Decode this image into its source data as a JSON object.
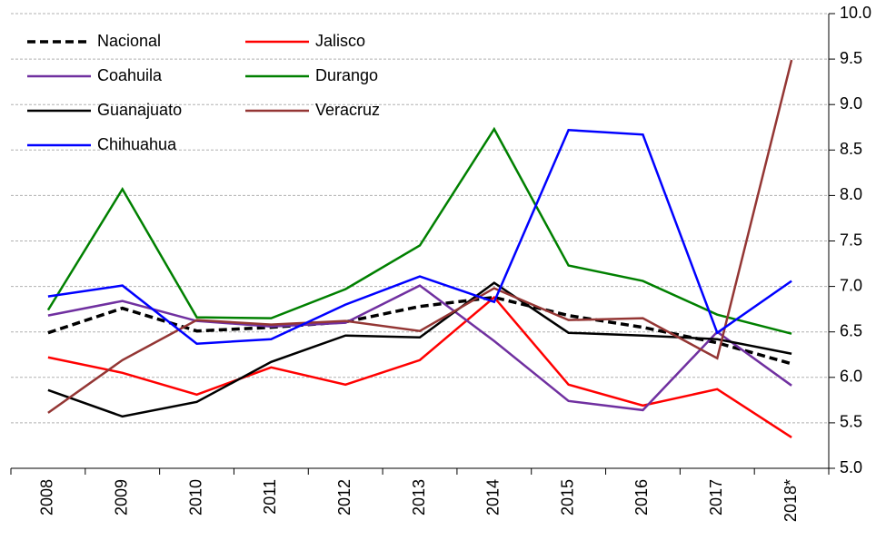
{
  "chart_data": {
    "type": "line",
    "categories": [
      "2008",
      "2009",
      "2010",
      "2011",
      "2012",
      "2013",
      "2014",
      "2015",
      "2016",
      "2017",
      "2018*"
    ],
    "series": [
      {
        "name": "Nacional",
        "color": "#000000",
        "line_style": "dashed",
        "values": [
          6.49,
          6.76,
          6.51,
          6.55,
          6.61,
          6.78,
          6.88,
          6.68,
          6.55,
          6.38,
          6.15
        ]
      },
      {
        "name": "Jalisco",
        "color": "#ff0000",
        "values": [
          6.22,
          6.05,
          5.81,
          6.11,
          5.92,
          6.19,
          6.88,
          5.92,
          5.69,
          5.87,
          5.34
        ]
      },
      {
        "name": "Coahuila",
        "color": "#7030a0",
        "values": [
          6.68,
          6.84,
          6.62,
          6.56,
          6.6,
          7.01,
          6.4,
          5.74,
          5.64,
          6.5,
          5.91
        ]
      },
      {
        "name": "Durango",
        "color": "#008000",
        "values": [
          6.74,
          8.07,
          6.66,
          6.65,
          6.97,
          7.45,
          8.73,
          7.23,
          7.06,
          6.69,
          6.48
        ]
      },
      {
        "name": "Guanajuato",
        "color": "#000000",
        "values": [
          5.86,
          5.57,
          5.73,
          6.17,
          6.46,
          6.44,
          7.04,
          6.49,
          6.46,
          6.42,
          6.26
        ]
      },
      {
        "name": "Veracruz",
        "color": "#943634",
        "values": [
          5.61,
          6.19,
          6.63,
          6.58,
          6.62,
          6.51,
          6.98,
          6.63,
          6.65,
          6.21,
          9.49
        ]
      },
      {
        "name": "Chihuahua",
        "color": "#0000ff",
        "values": [
          6.89,
          7.01,
          6.37,
          6.42,
          6.8,
          7.11,
          6.83,
          8.72,
          8.67,
          6.49,
          7.06
        ]
      }
    ],
    "ylim": [
      5,
      10
    ],
    "yticks": [
      {
        "value": 5,
        "label": "5.0"
      },
      {
        "value": 5.5,
        "label": "5.5"
      },
      {
        "value": 6,
        "label": "6.0"
      },
      {
        "value": 6.5,
        "label": "6.5"
      },
      {
        "value": 7,
        "label": "7.0"
      },
      {
        "value": 7.5,
        "label": "7.5"
      },
      {
        "value": 8,
        "label": "8.0"
      },
      {
        "value": 8.5,
        "label": "8.5"
      },
      {
        "value": 9,
        "label": "9.0"
      },
      {
        "value": 9.5,
        "label": "9.5"
      },
      {
        "value": 10,
        "label": "10.0"
      }
    ],
    "y_axis_side": "right",
    "grid": true,
    "legend": "upper left"
  }
}
